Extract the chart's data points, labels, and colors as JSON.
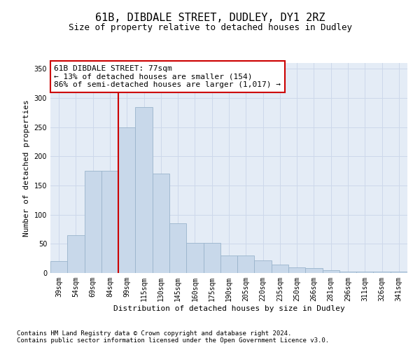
{
  "title1": "61B, DIBDALE STREET, DUDLEY, DY1 2RZ",
  "title2": "Size of property relative to detached houses in Dudley",
  "xlabel": "Distribution of detached houses by size in Dudley",
  "ylabel": "Number of detached properties",
  "categories": [
    "39sqm",
    "54sqm",
    "69sqm",
    "84sqm",
    "99sqm",
    "115sqm",
    "130sqm",
    "145sqm",
    "160sqm",
    "175sqm",
    "190sqm",
    "205sqm",
    "220sqm",
    "235sqm",
    "250sqm",
    "266sqm",
    "281sqm",
    "296sqm",
    "311sqm",
    "326sqm",
    "341sqm"
  ],
  "values": [
    20,
    65,
    175,
    175,
    250,
    284,
    170,
    85,
    52,
    52,
    30,
    30,
    22,
    15,
    10,
    8,
    5,
    2,
    2,
    2,
    2
  ],
  "bar_color": "#c8d8ea",
  "bar_edge_color": "#9ab4cc",
  "grid_color": "#cdd8ea",
  "background_color": "#e4ecf6",
  "vline_x": 3.5,
  "vline_color": "#cc0000",
  "annotation_text": "61B DIBDALE STREET: 77sqm\n← 13% of detached houses are smaller (154)\n86% of semi-detached houses are larger (1,017) →",
  "annotation_box_color": "#ffffff",
  "annotation_box_edge": "#cc0000",
  "ylim": [
    0,
    360
  ],
  "yticks": [
    0,
    50,
    100,
    150,
    200,
    250,
    300,
    350
  ],
  "footer1": "Contains HM Land Registry data © Crown copyright and database right 2024.",
  "footer2": "Contains public sector information licensed under the Open Government Licence v3.0.",
  "title1_fontsize": 11,
  "title2_fontsize": 9,
  "xlabel_fontsize": 8,
  "ylabel_fontsize": 8,
  "tick_fontsize": 7,
  "annotation_fontsize": 8,
  "footer_fontsize": 6.5
}
